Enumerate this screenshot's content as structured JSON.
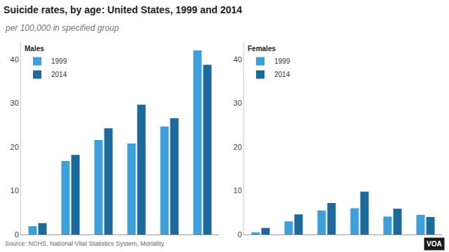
{
  "title": "Suicide rates, by age: United States, 1999 and 2014",
  "subtitle": "per 100,000 in specified group",
  "source": "Source: NCHS, National Vital Statistics System, Mortality.",
  "logo": "VOA",
  "chart_data": [
    {
      "type": "bar",
      "title": "Males",
      "categories": [
        null,
        null,
        null,
        null,
        null,
        null
      ],
      "series": [
        {
          "name": "1999",
          "color": "#3d9fdc",
          "values": [
            1.9,
            16.8,
            21.6,
            20.8,
            24.7,
            42.1
          ]
        },
        {
          "name": "2014",
          "color": "#1c6a9b",
          "values": [
            2.6,
            18.2,
            24.3,
            29.7,
            26.6,
            38.8
          ]
        }
      ],
      "ylim": [
        0,
        44
      ],
      "yticks": [
        0,
        10,
        20,
        30,
        40
      ],
      "grid": false,
      "legend": "upper left",
      "tick_labels": "y"
    },
    {
      "type": "bar",
      "title": "Females",
      "categories": [
        null,
        null,
        null,
        null,
        null,
        null
      ],
      "series": [
        {
          "name": "1999",
          "color": "#3d9fdc",
          "values": [
            0.5,
            3.0,
            5.5,
            6.0,
            4.1,
            4.5
          ]
        },
        {
          "name": "2014",
          "color": "#1c6a9b",
          "values": [
            1.5,
            4.6,
            7.2,
            9.8,
            5.9,
            4.0
          ]
        }
      ],
      "ylim": [
        0,
        44
      ],
      "yticks": [
        0,
        10,
        20,
        30,
        40
      ],
      "grid": false,
      "legend": "upper left",
      "tick_labels": "y"
    }
  ]
}
